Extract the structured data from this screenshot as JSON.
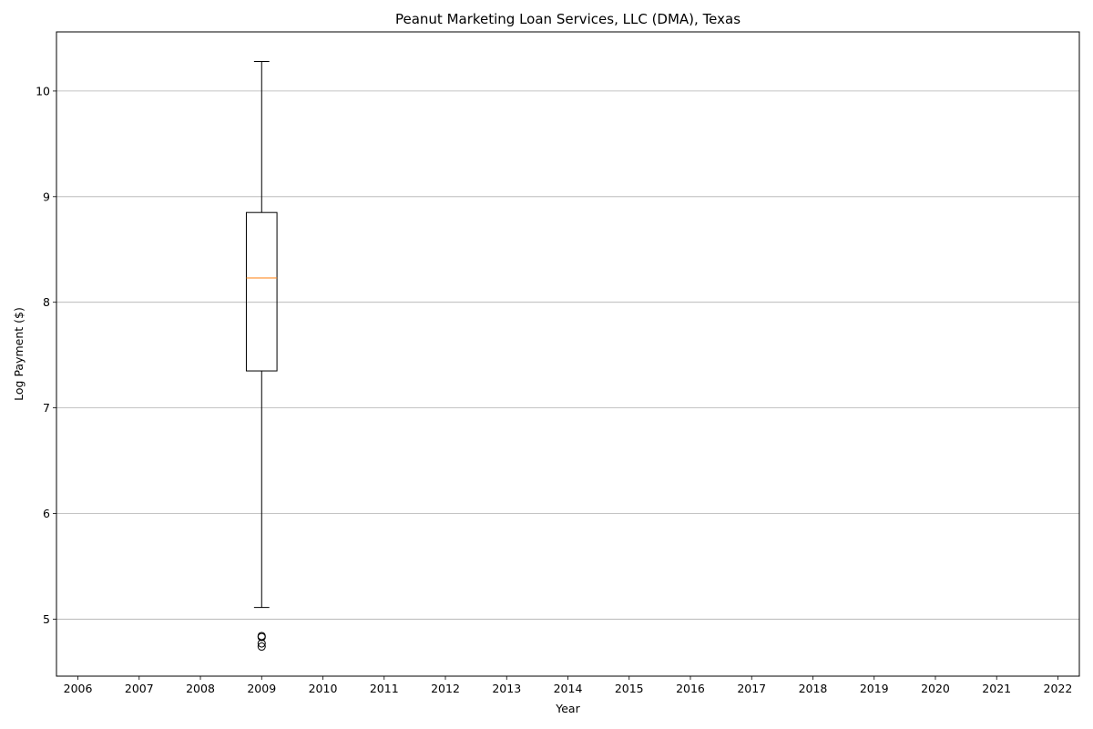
{
  "chart_data": {
    "type": "boxplot",
    "title": "Peanut Marketing Loan Services, LLC (DMA), Texas",
    "xlabel": "Year",
    "ylabel": "Log Payment ($)",
    "categories": [
      "2006",
      "2007",
      "2008",
      "2009",
      "2010",
      "2011",
      "2012",
      "2013",
      "2014",
      "2015",
      "2016",
      "2017",
      "2018",
      "2019",
      "2020",
      "2021",
      "2022"
    ],
    "y_ticks": [
      5,
      6,
      7,
      8,
      9,
      10
    ],
    "ylim": [
      4.46,
      10.56
    ],
    "grid": "y",
    "boxes": [
      {
        "category": "2009",
        "whisker_low": 5.11,
        "q1": 7.35,
        "median": 8.23,
        "q3": 8.85,
        "whisker_high": 10.28,
        "outliers": [
          4.74,
          4.77,
          4.83,
          4.84
        ]
      }
    ],
    "colors": {
      "box": "#000000",
      "median": "#ff7f0e",
      "grid": "#b0b0b0"
    }
  }
}
